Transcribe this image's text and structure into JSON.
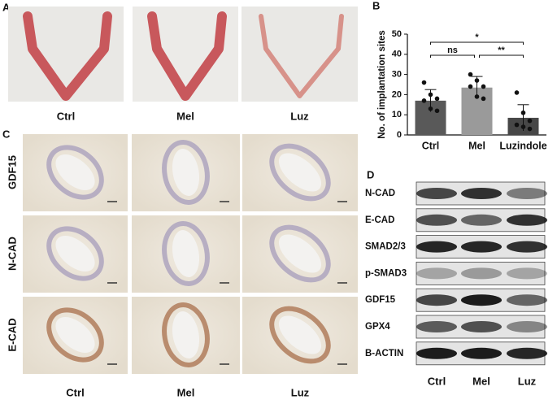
{
  "panel_a": {
    "letter": "A",
    "labels": [
      "Ctrl",
      "Mel",
      "Luz"
    ]
  },
  "chart_data": {
    "type": "bar",
    "letter": "B",
    "y_label": "No. of implantation sites",
    "categories": [
      "Ctrl",
      "Mel",
      "Luzindole"
    ],
    "values": [
      17,
      23.5,
      8.5
    ],
    "errors": [
      5.5,
      5.5,
      6.5
    ],
    "points": [
      [
        26,
        20,
        18,
        17,
        13,
        12
      ],
      [
        30,
        27,
        24,
        24,
        19,
        18
      ],
      [
        21,
        11,
        7,
        5,
        4,
        3
      ]
    ],
    "colors": [
      "#595959",
      "#9a9a9a",
      "#474747"
    ],
    "ylim": [
      0,
      50
    ],
    "yticks": [
      0,
      10,
      20,
      30,
      40,
      50
    ],
    "annotations": [
      {
        "text": "*",
        "between": [
          "Ctrl",
          "Luzindole"
        ]
      },
      {
        "text": "ns",
        "between": [
          "Ctrl",
          "Mel"
        ]
      },
      {
        "text": "**",
        "between": [
          "Mel",
          "Luzindole"
        ]
      }
    ]
  },
  "panel_c": {
    "letter": "C",
    "rows": [
      "GDF15",
      "N-CAD",
      "E-CAD"
    ],
    "columns": [
      "Ctrl",
      "Mel",
      "Luz"
    ]
  },
  "panel_d": {
    "letter": "D",
    "rows": [
      "N-CAD",
      "E-CAD",
      "SMAD2/3",
      "p-SMAD3",
      "GDF15",
      "GPX4",
      "B-ACTIN"
    ],
    "columns": [
      "Ctrl",
      "Mel",
      "Luz"
    ]
  }
}
